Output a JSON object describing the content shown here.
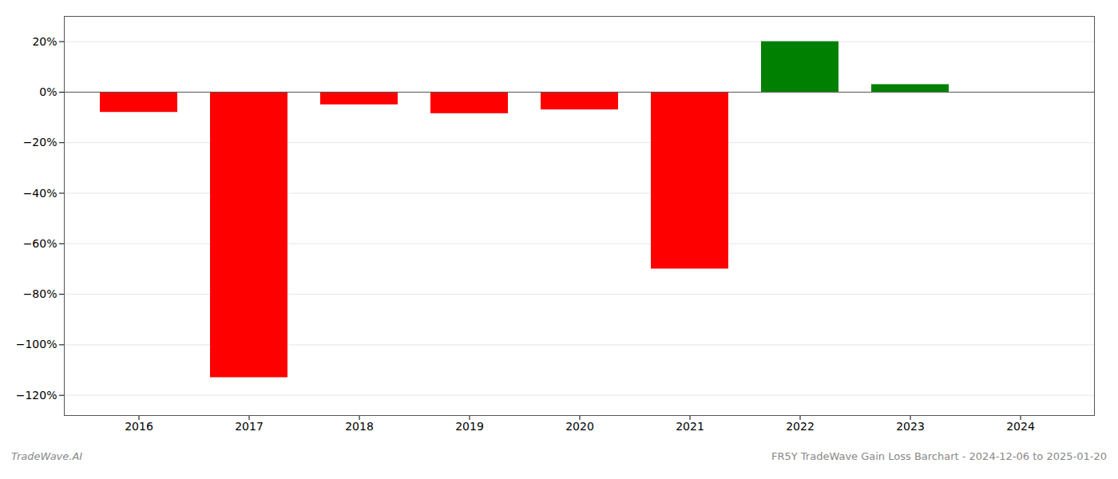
{
  "chart_data": {
    "type": "bar",
    "categories": [
      "2016",
      "2017",
      "2018",
      "2019",
      "2020",
      "2021",
      "2022",
      "2023",
      "2024"
    ],
    "values": [
      -0.08,
      -1.13,
      -0.05,
      -0.085,
      -0.07,
      -0.7,
      0.2,
      0.03,
      0.0
    ],
    "colors": [
      "#ff0000",
      "#ff0000",
      "#ff0000",
      "#ff0000",
      "#ff0000",
      "#ff0000",
      "#008000",
      "#008000",
      "#ffffff"
    ],
    "ylim": [
      -1.28,
      0.3
    ],
    "yticks": [
      {
        "value": 0.2,
        "label": "20%"
      },
      {
        "value": 0.0,
        "label": "0%"
      },
      {
        "value": -0.2,
        "label": "−20%"
      },
      {
        "value": -0.4,
        "label": "−40%"
      },
      {
        "value": -0.6,
        "label": "−60%"
      },
      {
        "value": -0.8,
        "label": "−80%"
      },
      {
        "value": -1.0,
        "label": "−100%"
      },
      {
        "value": -1.2,
        "label": "−120%"
      }
    ],
    "grid": true,
    "annotations": [
      "TradeWave.AI",
      "FR5Y TradeWave Gain Loss Barchart - 2024-12-06 to 2025-01-20"
    ]
  }
}
